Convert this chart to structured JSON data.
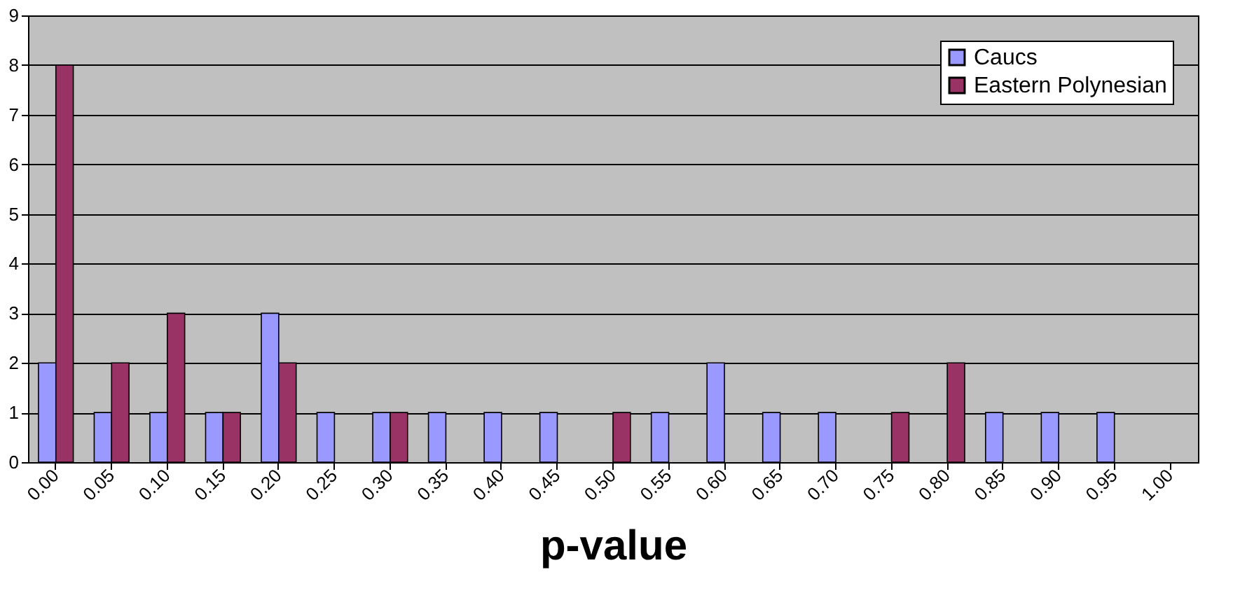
{
  "chart_data": {
    "type": "bar",
    "xlabel": "p-value",
    "categories": [
      "0.00",
      "0.05",
      "0.10",
      "0.15",
      "0.20",
      "0.25",
      "0.30",
      "0.35",
      "0.40",
      "0.45",
      "0.50",
      "0.55",
      "0.60",
      "0.65",
      "0.70",
      "0.75",
      "0.80",
      "0.85",
      "0.90",
      "0.95",
      "1.00"
    ],
    "series": [
      {
        "name": "Caucs",
        "color": "#9999ff",
        "values": [
          2,
          1,
          1,
          1,
          3,
          1,
          1,
          1,
          1,
          1,
          0,
          1,
          2,
          1,
          1,
          0,
          0,
          1,
          1,
          1,
          0
        ]
      },
      {
        "name": "Eastern Polynesian",
        "color": "#993366",
        "values": [
          8,
          2,
          3,
          1,
          2,
          0,
          1,
          0,
          0,
          0,
          1,
          0,
          0,
          0,
          0,
          1,
          2,
          0,
          0,
          0,
          0
        ]
      }
    ],
    "ylim": [
      0,
      9
    ],
    "yticks": [
      0,
      1,
      2,
      3,
      4,
      5,
      6,
      7,
      8,
      9
    ],
    "grid": "y",
    "legend": "top right"
  }
}
